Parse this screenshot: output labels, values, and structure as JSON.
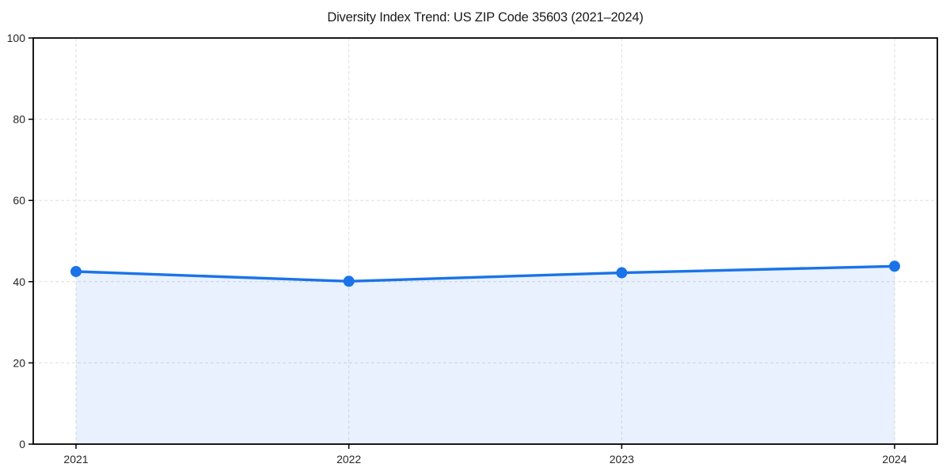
{
  "chart_data": {
    "type": "line",
    "title": "Diversity Index Trend: US ZIP Code 35603 (2021–2024)",
    "x": [
      "2021",
      "2022",
      "2023",
      "2024"
    ],
    "series": [
      {
        "name": "Diversity Index",
        "values": [
          42.5,
          40.1,
          42.2,
          43.8
        ]
      }
    ],
    "xlabel": "",
    "ylabel": "",
    "ylim": [
      0,
      100
    ],
    "yticks": [
      0,
      20,
      40,
      60,
      80,
      100
    ],
    "grid": true,
    "grid_style": "dashed",
    "legend": "none",
    "area_fill": true,
    "marker": "circle",
    "colors": {
      "line": "#1a73e8",
      "marker": "#1a73e8",
      "fill": "#1a73e8",
      "fill_opacity": 0.1,
      "grid": "#dedede",
      "axis": "#000000",
      "tick_text": "#262626",
      "title_text": "#1a1a1a",
      "background": "#ffffff"
    }
  }
}
